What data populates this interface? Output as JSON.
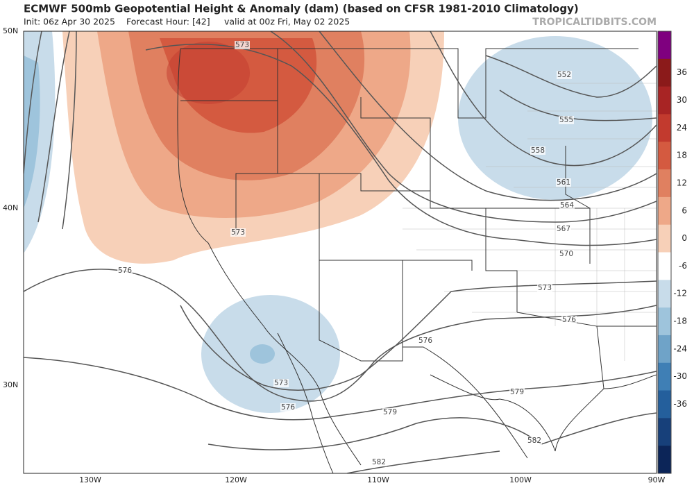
{
  "header": {
    "title": "ECMWF 500mb Geopotential Height & Anomaly (dam) (based on CFSR 1981-2010 Climatology)",
    "init": "Init: 06z Apr 30 2025",
    "forecast_hour": "Forecast Hour: [42]",
    "valid": "valid at 00z Fri, May 02 2025",
    "brand": "TROPICALTIDBITS.COM"
  },
  "lat_labels": [
    "50N",
    "40N",
    "30N"
  ],
  "lon_labels": [
    "130W",
    "120W",
    "110W",
    "100W",
    "90W"
  ],
  "contour_labels": [
    "573",
    "552",
    "555",
    "558",
    "561",
    "564",
    "567",
    "570",
    "573",
    "576",
    "576",
    "573",
    "576",
    "573",
    "576",
    "579",
    "579",
    "582",
    "582"
  ],
  "colorbar": {
    "levels": [
      36,
      30,
      24,
      18,
      12,
      6,
      0,
      -6,
      -12,
      -18,
      -24,
      -30,
      -36
    ],
    "colors": [
      "#7f007f",
      "#8b1a1a",
      "#a82424",
      "#c23a2e",
      "#d45a40",
      "#e08060",
      "#eea888",
      "#f7d0b8",
      "#ffffff",
      "#c8dcea",
      "#9ec4dc",
      "#6fa3c8",
      "#3f7fb5",
      "#245f9c",
      "#17407a",
      "#0c2558"
    ]
  }
}
